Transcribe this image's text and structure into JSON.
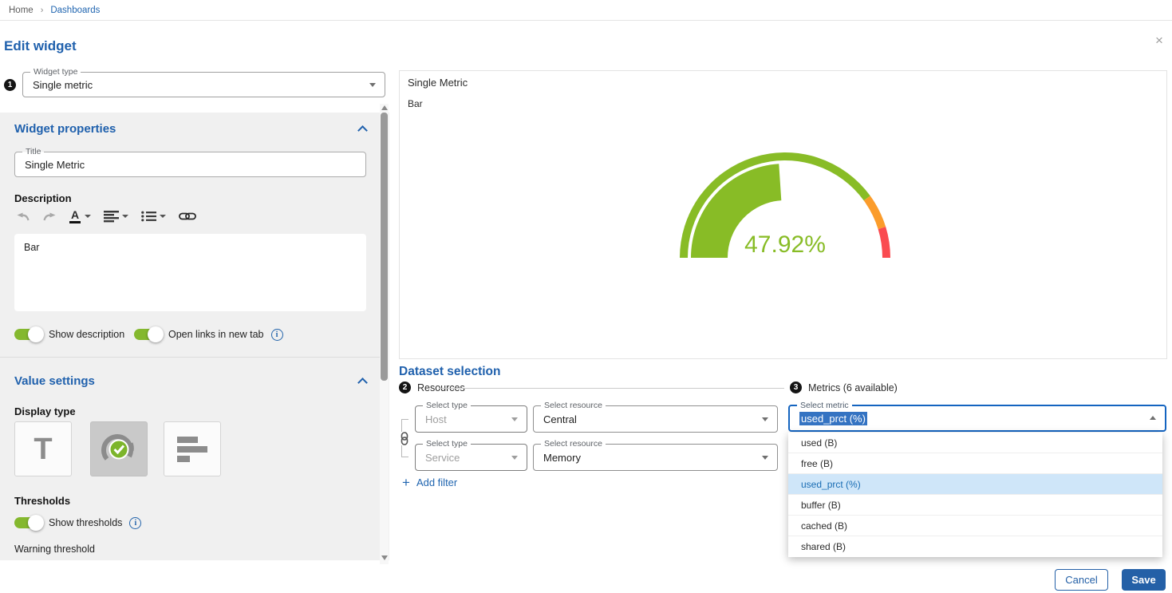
{
  "breadcrumb": {
    "home": "Home",
    "separator": "›",
    "current": "Dashboards"
  },
  "dialog": {
    "title": "Edit widget",
    "widget_type": {
      "step": "1",
      "label": "Widget type",
      "value": "Single metric"
    },
    "widget_properties": {
      "heading": "Widget properties",
      "title_field": {
        "label": "Title",
        "value": "Single Metric"
      },
      "description": {
        "label": "Description",
        "value": "Bar",
        "toolbar": [
          "undo",
          "redo",
          "text-color",
          "align",
          "list",
          "link"
        ]
      },
      "toggles": {
        "show_description": {
          "label": "Show description",
          "on": true
        },
        "open_links": {
          "label": "Open links in new tab",
          "on": true
        }
      }
    },
    "value_settings": {
      "heading": "Value settings",
      "display_type": {
        "label": "Display type",
        "options": [
          {
            "name": "text",
            "selected": false
          },
          {
            "name": "gauge",
            "selected": true
          },
          {
            "name": "bar",
            "selected": false
          }
        ]
      },
      "thresholds": {
        "label": "Thresholds",
        "show_thresholds": {
          "label": "Show thresholds",
          "on": true
        },
        "warning_label": "Warning threshold"
      }
    },
    "preview": {
      "title": "Single Metric",
      "description": "Bar"
    },
    "dataset": {
      "heading": "Dataset selection",
      "resources": {
        "step": "2",
        "label": "Resources",
        "rows": [
          {
            "type_label": "Select type",
            "type_value": "Host",
            "resource_label": "Select resource",
            "resource_value": "Central"
          },
          {
            "type_label": "Select type",
            "type_value": "Service",
            "resource_label": "Select resource",
            "resource_value": "Memory"
          }
        ],
        "add_filter_label": "Add filter"
      },
      "metrics": {
        "step": "3",
        "label": "Metrics (6 available)",
        "select_label": "Select metric",
        "value": "used_prct (%)",
        "options": [
          {
            "label": "used (B)",
            "selected": false
          },
          {
            "label": "free (B)",
            "selected": false
          },
          {
            "label": "used_prct (%)",
            "selected": true
          },
          {
            "label": "buffer (B)",
            "selected": false
          },
          {
            "label": "cached (B)",
            "selected": false
          },
          {
            "label": "shared (B)",
            "selected": false
          }
        ]
      }
    },
    "actions": {
      "cancel": "Cancel",
      "save": "Save"
    }
  },
  "chart_data": {
    "type": "gauge",
    "value": 47.92,
    "unit": "%",
    "display_value": "47.92%",
    "min": 0,
    "max": 100,
    "thresholds": {
      "warning": 80,
      "critical": 90.5
    },
    "colors": {
      "ok": "#88bc26",
      "warning": "#fb9c2b",
      "critical": "#fa4b50"
    }
  },
  "icons": {
    "close": "×",
    "info": "i",
    "plus": "+",
    "text_display": "T"
  },
  "colors": {
    "primary_blue": "#2460a7",
    "heading_blue": "#2061ad",
    "toggle_green": "#84b82e",
    "panel_grey": "#f0f0f0",
    "menu_highlight": "#cfe6f9"
  }
}
